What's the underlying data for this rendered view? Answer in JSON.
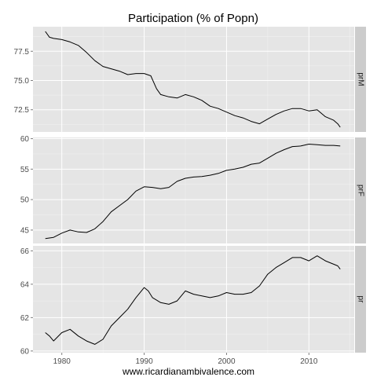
{
  "chart_data": {
    "type": "line",
    "title": "Participation (% of Popn)",
    "xlabel": "www.ricardianambivalence.com",
    "ylabel": "",
    "x_ticks": [
      1980,
      1990,
      2000,
      2010
    ],
    "xlim": [
      1976.5,
      2015.5
    ],
    "grid": true,
    "legend": "none",
    "line_color": "#000000",
    "panels": [
      {
        "name": "prM",
        "ylim": [
          70.6,
          79.6
        ],
        "y_ticks": [
          72.5,
          75.0,
          77.5
        ],
        "y_tick_labels": [
          "72.5",
          "75.0",
          "77.5"
        ],
        "points": [
          [
            1978.0,
            79.2
          ],
          [
            1978.5,
            78.7
          ],
          [
            1979.0,
            78.6
          ],
          [
            1980.0,
            78.5
          ],
          [
            1981.0,
            78.3
          ],
          [
            1982.0,
            78.0
          ],
          [
            1983.0,
            77.4
          ],
          [
            1984.0,
            76.7
          ],
          [
            1985.0,
            76.2
          ],
          [
            1986.0,
            76.0
          ],
          [
            1987.0,
            75.8
          ],
          [
            1988.0,
            75.5
          ],
          [
            1989.0,
            75.6
          ],
          [
            1990.0,
            75.6
          ],
          [
            1990.8,
            75.4
          ],
          [
            1991.5,
            74.3
          ],
          [
            1992.0,
            73.8
          ],
          [
            1993.0,
            73.6
          ],
          [
            1994.0,
            73.5
          ],
          [
            1995.0,
            73.8
          ],
          [
            1996.0,
            73.6
          ],
          [
            1997.0,
            73.3
          ],
          [
            1998.0,
            72.8
          ],
          [
            1999.0,
            72.6
          ],
          [
            2000.0,
            72.3
          ],
          [
            2001.0,
            72.0
          ],
          [
            2002.0,
            71.8
          ],
          [
            2003.0,
            71.5
          ],
          [
            2004.0,
            71.3
          ],
          [
            2005.0,
            71.7
          ],
          [
            2006.0,
            72.1
          ],
          [
            2007.0,
            72.4
          ],
          [
            2008.0,
            72.6
          ],
          [
            2009.0,
            72.6
          ],
          [
            2010.0,
            72.4
          ],
          [
            2011.0,
            72.5
          ],
          [
            2012.0,
            71.9
          ],
          [
            2013.0,
            71.6
          ],
          [
            2013.5,
            71.3
          ],
          [
            2013.8,
            71.0
          ]
        ]
      },
      {
        "name": "prF",
        "ylim": [
          42.8,
          60.2
        ],
        "y_ticks": [
          45,
          50,
          55,
          60
        ],
        "y_tick_labels": [
          "45",
          "50",
          "55",
          "60"
        ],
        "points": [
          [
            1978.0,
            43.6
          ],
          [
            1979.0,
            43.8
          ],
          [
            1980.0,
            44.5
          ],
          [
            1981.0,
            45.0
          ],
          [
            1982.0,
            44.7
          ],
          [
            1983.0,
            44.6
          ],
          [
            1984.0,
            45.2
          ],
          [
            1985.0,
            46.4
          ],
          [
            1986.0,
            48.0
          ],
          [
            1987.0,
            49.0
          ],
          [
            1988.0,
            50.0
          ],
          [
            1989.0,
            51.4
          ],
          [
            1990.0,
            52.1
          ],
          [
            1991.0,
            52.0
          ],
          [
            1992.0,
            51.8
          ],
          [
            1993.0,
            52.0
          ],
          [
            1994.0,
            53.0
          ],
          [
            1995.0,
            53.5
          ],
          [
            1996.0,
            53.7
          ],
          [
            1997.0,
            53.8
          ],
          [
            1998.0,
            54.0
          ],
          [
            1999.0,
            54.3
          ],
          [
            2000.0,
            54.8
          ],
          [
            2001.0,
            55.0
          ],
          [
            2002.0,
            55.3
          ],
          [
            2003.0,
            55.8
          ],
          [
            2004.0,
            56.0
          ],
          [
            2005.0,
            56.8
          ],
          [
            2006.0,
            57.6
          ],
          [
            2007.0,
            58.2
          ],
          [
            2008.0,
            58.7
          ],
          [
            2009.0,
            58.8
          ],
          [
            2010.0,
            59.1
          ],
          [
            2011.0,
            59.0
          ],
          [
            2012.0,
            58.9
          ],
          [
            2013.0,
            58.9
          ],
          [
            2013.8,
            58.8
          ]
        ]
      },
      {
        "name": "pr",
        "ylim": [
          59.9,
          66.3
        ],
        "y_ticks": [
          60,
          62,
          64,
          66
        ],
        "y_tick_labels": [
          "60",
          "62",
          "64",
          "66"
        ],
        "points": [
          [
            1978.0,
            61.1
          ],
          [
            1978.5,
            60.9
          ],
          [
            1979.0,
            60.6
          ],
          [
            1980.0,
            61.1
          ],
          [
            1981.0,
            61.3
          ],
          [
            1982.0,
            60.9
          ],
          [
            1983.0,
            60.6
          ],
          [
            1984.0,
            60.4
          ],
          [
            1985.0,
            60.7
          ],
          [
            1986.0,
            61.5
          ],
          [
            1987.0,
            62.0
          ],
          [
            1988.0,
            62.5
          ],
          [
            1989.0,
            63.2
          ],
          [
            1990.0,
            63.8
          ],
          [
            1990.5,
            63.6
          ],
          [
            1991.0,
            63.2
          ],
          [
            1992.0,
            62.9
          ],
          [
            1993.0,
            62.8
          ],
          [
            1994.0,
            63.0
          ],
          [
            1995.0,
            63.6
          ],
          [
            1996.0,
            63.4
          ],
          [
            1997.0,
            63.3
          ],
          [
            1998.0,
            63.2
          ],
          [
            1999.0,
            63.3
          ],
          [
            2000.0,
            63.5
          ],
          [
            2001.0,
            63.4
          ],
          [
            2002.0,
            63.4
          ],
          [
            2003.0,
            63.5
          ],
          [
            2004.0,
            63.9
          ],
          [
            2005.0,
            64.6
          ],
          [
            2006.0,
            65.0
          ],
          [
            2007.0,
            65.3
          ],
          [
            2008.0,
            65.6
          ],
          [
            2009.0,
            65.6
          ],
          [
            2010.0,
            65.4
          ],
          [
            2011.0,
            65.7
          ],
          [
            2012.0,
            65.4
          ],
          [
            2013.0,
            65.2
          ],
          [
            2013.5,
            65.1
          ],
          [
            2013.8,
            64.9
          ]
        ]
      }
    ]
  }
}
